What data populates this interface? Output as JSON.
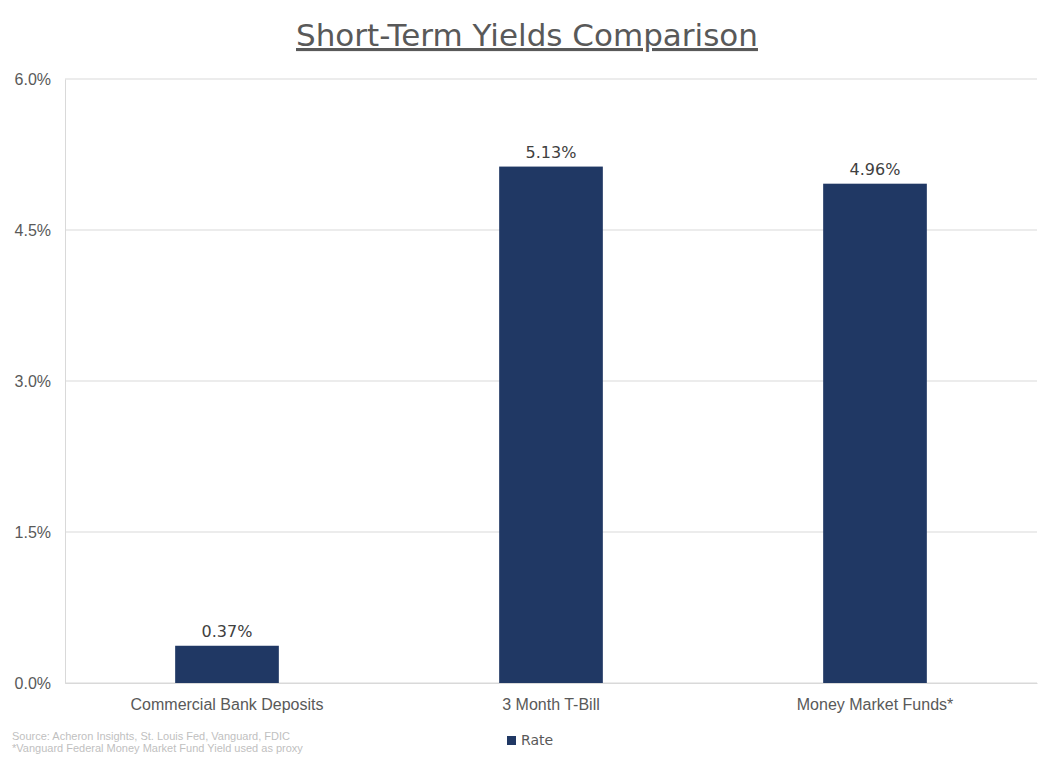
{
  "chart_data": {
    "type": "bar",
    "title": "Short-Term Yields Comparison",
    "categories": [
      "Commercial Bank Deposits",
      "3 Month T-Bill",
      "Money Market Funds*"
    ],
    "series": [
      {
        "name": "Rate",
        "color": "#203864",
        "values": [
          0.37,
          5.13,
          4.96
        ],
        "value_labels": [
          "0.37%",
          "5.13%",
          "4.96%"
        ]
      }
    ],
    "ylim": [
      0,
      6
    ],
    "yticks": [
      {
        "value": 0,
        "label": "0.0%"
      },
      {
        "value": 1.5,
        "label": "1.5%"
      },
      {
        "value": 3,
        "label": "3.0%"
      },
      {
        "value": 4.5,
        "label": "4.5%"
      },
      {
        "value": 6,
        "label": "6.0%"
      }
    ],
    "grid": true,
    "data_labels": true,
    "legend": "bottom",
    "annotations": [
      "Source: Acheron Insights, St. Louis Fed, Vanguard, FDIC",
      "*Vanguard Federal Money Market Fund Yield used as proxy"
    ]
  }
}
